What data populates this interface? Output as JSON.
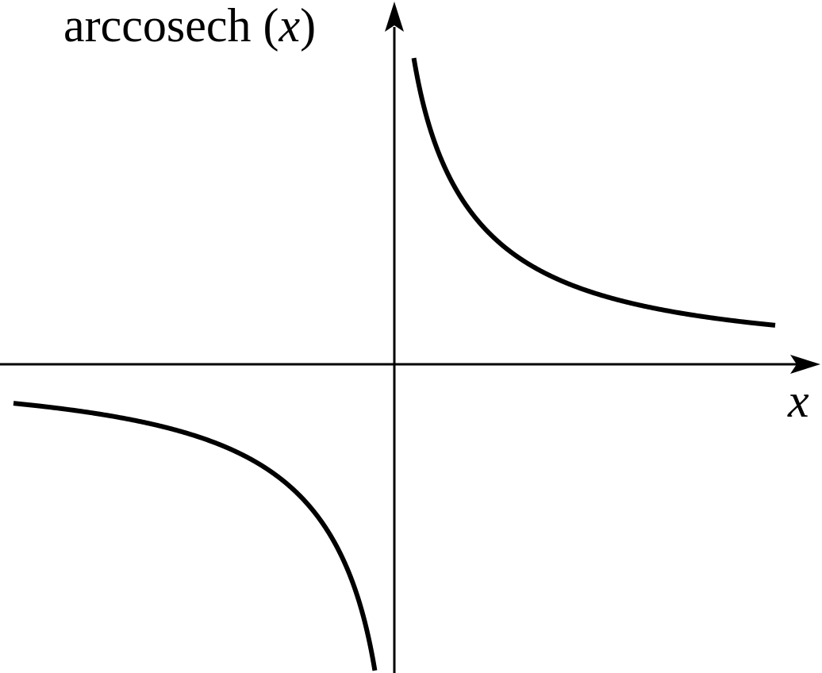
{
  "chart_data": {
    "type": "line",
    "title": "",
    "ylabel": {
      "prefix": "arccosech (",
      "variable": "x",
      "suffix": ")"
    },
    "xlabel": "x",
    "function": "arccosech",
    "xlim": [
      -3.05,
      3.15
    ],
    "ylim": [
      -2.4,
      2.55
    ],
    "grid": false,
    "legend": "none",
    "series": [
      {
        "branch": "negative-x",
        "x": [
          -3.0,
          -2.5,
          -2.0,
          -1.5,
          -1.0,
          -0.7,
          -0.5,
          -0.35,
          -0.25,
          -0.18,
          -0.15
        ],
        "y": [
          -0.327,
          -0.39,
          -0.481,
          -0.625,
          -0.881,
          -1.165,
          -1.444,
          -1.759,
          -2.095,
          -2.4,
          -2.4
        ]
      },
      {
        "branch": "positive-x",
        "x": [
          0.15,
          0.18,
          0.25,
          0.35,
          0.5,
          0.7,
          1.0,
          1.5,
          2.0,
          2.5,
          3.0
        ],
        "y": [
          2.55,
          2.4,
          2.095,
          1.759,
          1.444,
          1.165,
          0.881,
          0.625,
          0.481,
          0.39,
          0.327
        ]
      }
    ],
    "color": "#000000"
  }
}
